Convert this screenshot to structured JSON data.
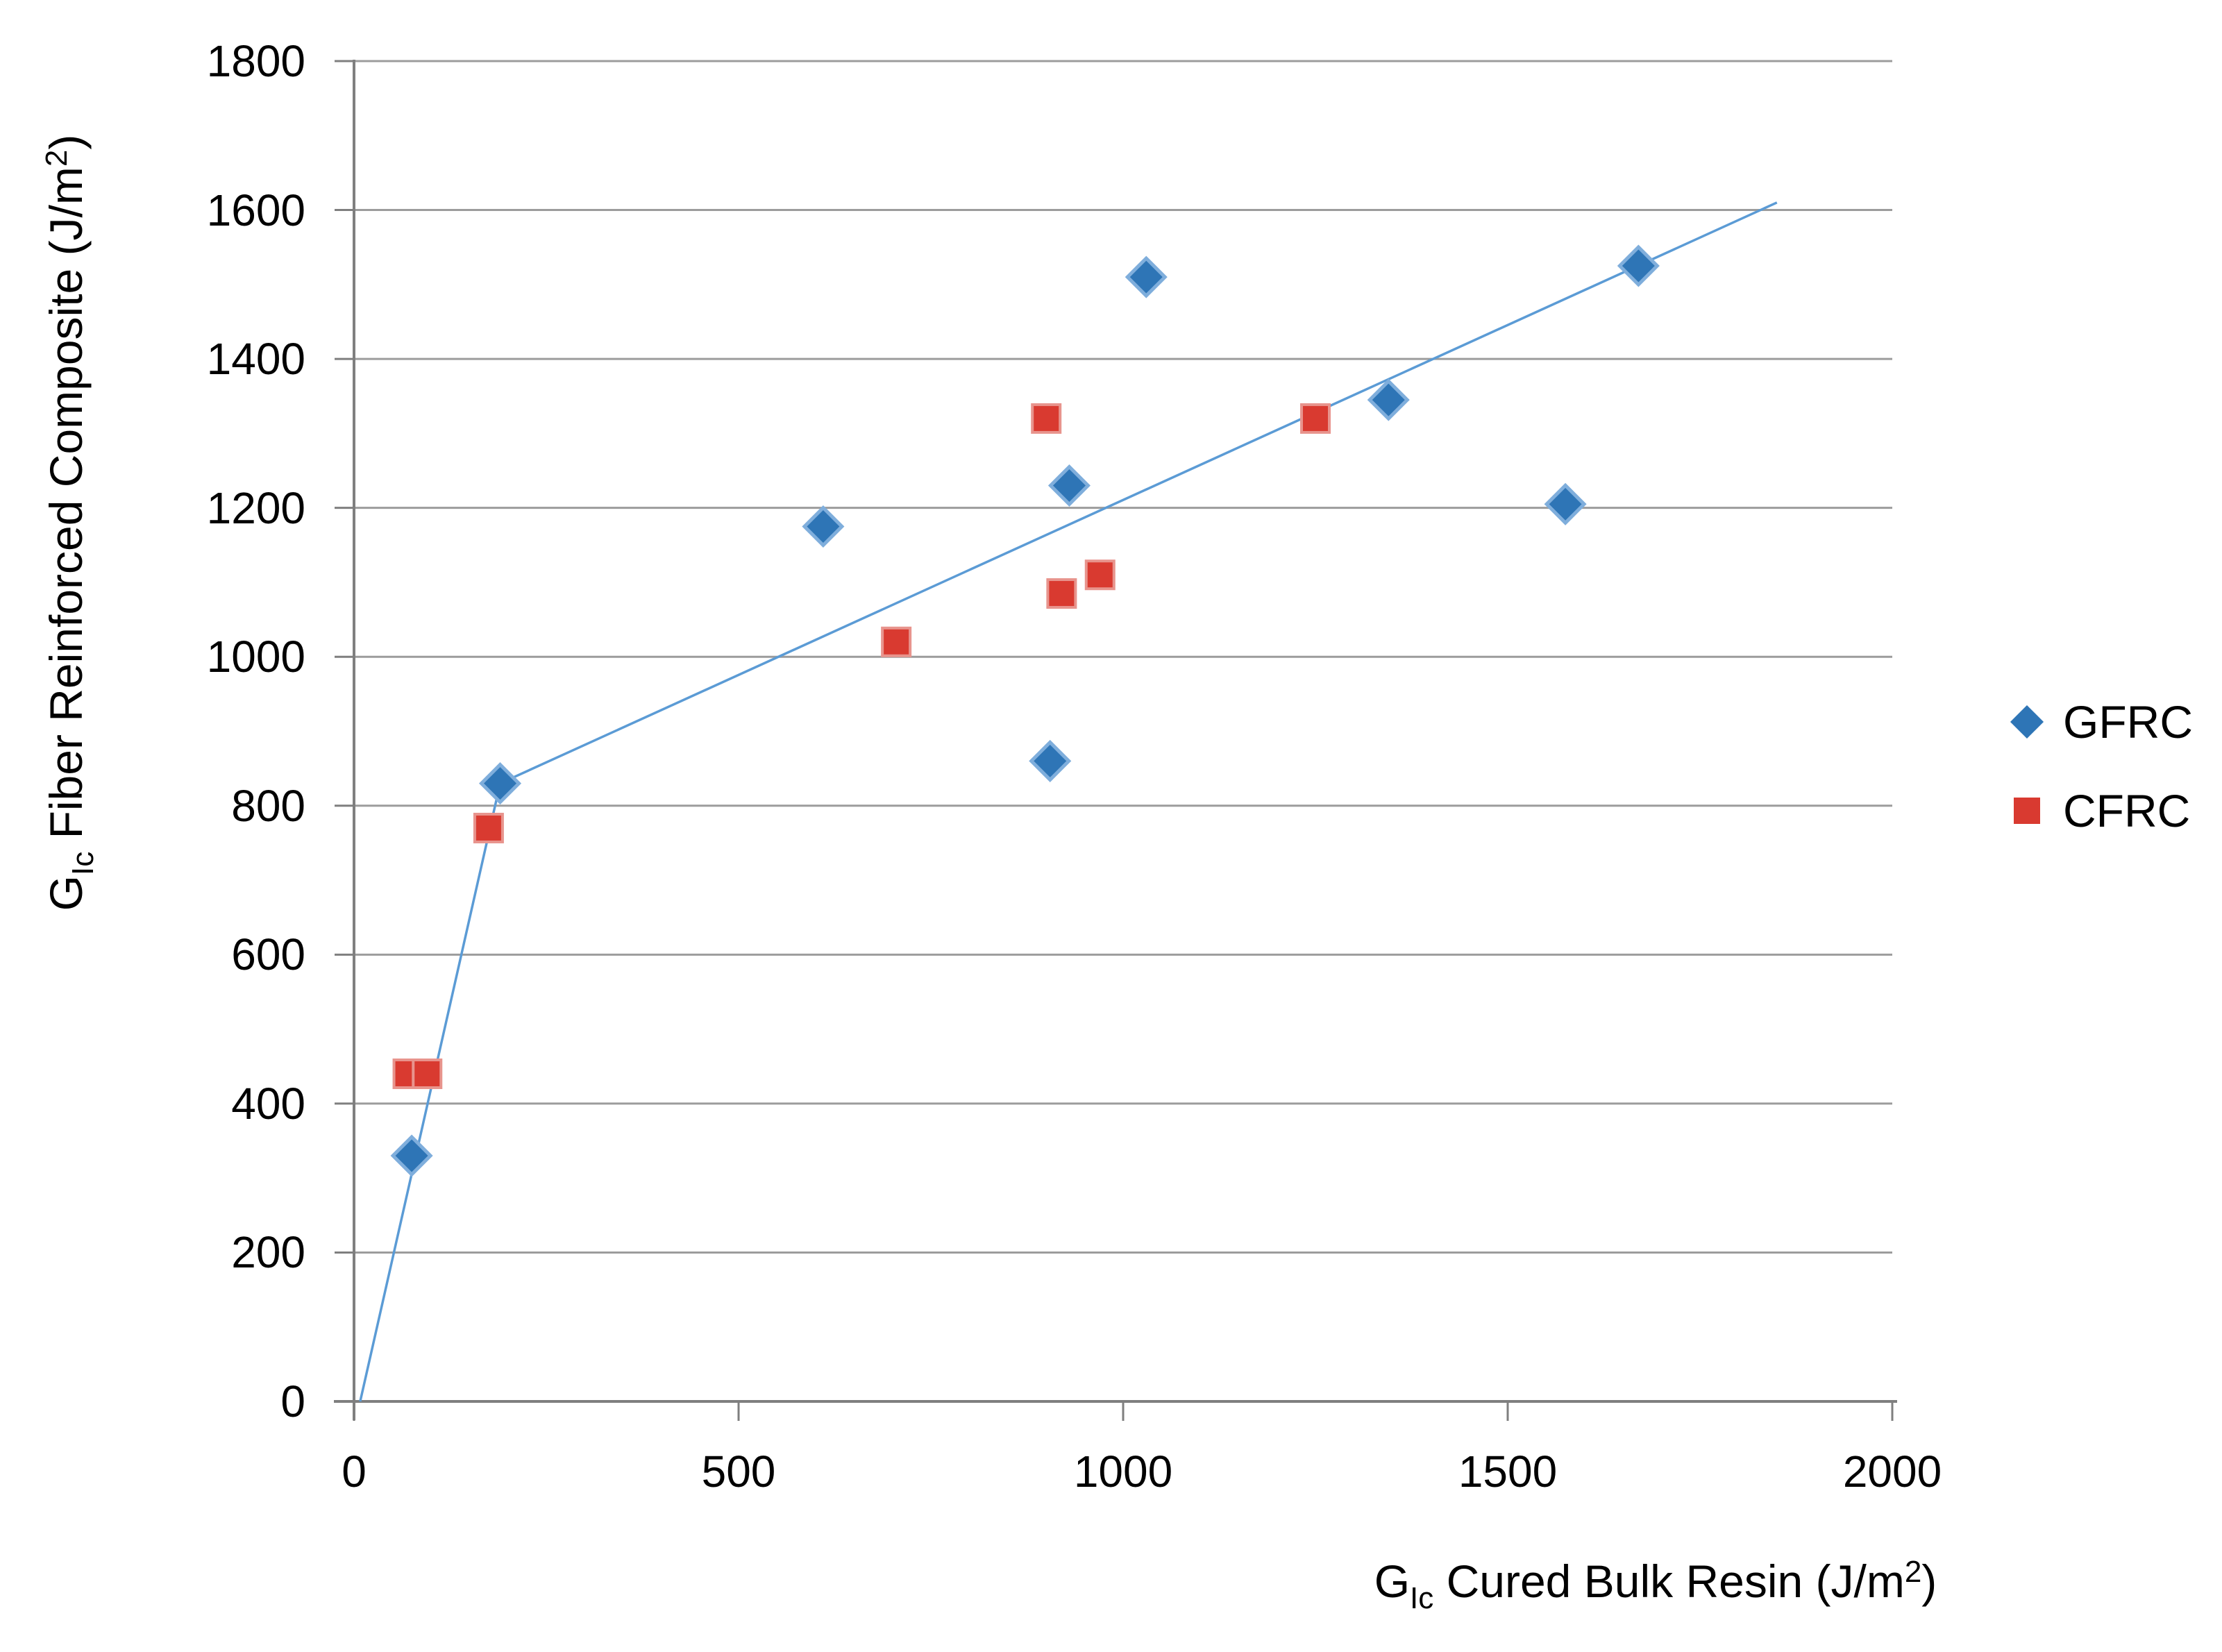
{
  "chart_data": {
    "type": "scatter",
    "title": "",
    "xlabel": {
      "prefix": "G",
      "sub": "Ic",
      "main": " Cured Bulk Resin (J/m",
      "sup": "2",
      "close": ")"
    },
    "ylabel": {
      "prefix": "G",
      "sub": "Ic",
      "main": " Fiber Reinforced Composite (J/m",
      "sup": "2",
      "close": ")"
    },
    "xlim": [
      0,
      2000
    ],
    "ylim": [
      0,
      1800
    ],
    "xticks": [
      0,
      500,
      1000,
      1500,
      2000
    ],
    "yticks": [
      0,
      200,
      400,
      600,
      800,
      1000,
      1200,
      1400,
      1600,
      1800
    ],
    "grid": "horizontal-only",
    "legend_position": "right-center",
    "series": [
      {
        "name": "GFRC",
        "marker": "diamond",
        "color": "#2E75B6",
        "edge_color": "#7FAEDC",
        "points": [
          [
            75,
            330
          ],
          [
            190,
            830
          ],
          [
            610,
            1175
          ],
          [
            905,
            860
          ],
          [
            930,
            1230
          ],
          [
            1030,
            1510
          ],
          [
            1345,
            1345
          ],
          [
            1575,
            1205
          ],
          [
            1670,
            1525
          ]
        ]
      },
      {
        "name": "CFRC",
        "marker": "square",
        "color": "#D93A30",
        "edge_color": "#E8948D",
        "points": [
          [
            70,
            440
          ],
          [
            95,
            440
          ],
          [
            175,
            770
          ],
          [
            705,
            1020
          ],
          [
            900,
            1320
          ],
          [
            920,
            1085
          ],
          [
            970,
            1110
          ],
          [
            1250,
            1320
          ]
        ]
      }
    ],
    "trendline": {
      "color": "#5B9BD5",
      "points": [
        [
          8,
          0
        ],
        [
          190,
          830
        ],
        [
          1850,
          1610
        ]
      ]
    }
  },
  "colors": {
    "axis": "#7F7F7F",
    "gridline": "#9C9C9C",
    "text": "#000000",
    "background": "#FFFFFF"
  }
}
